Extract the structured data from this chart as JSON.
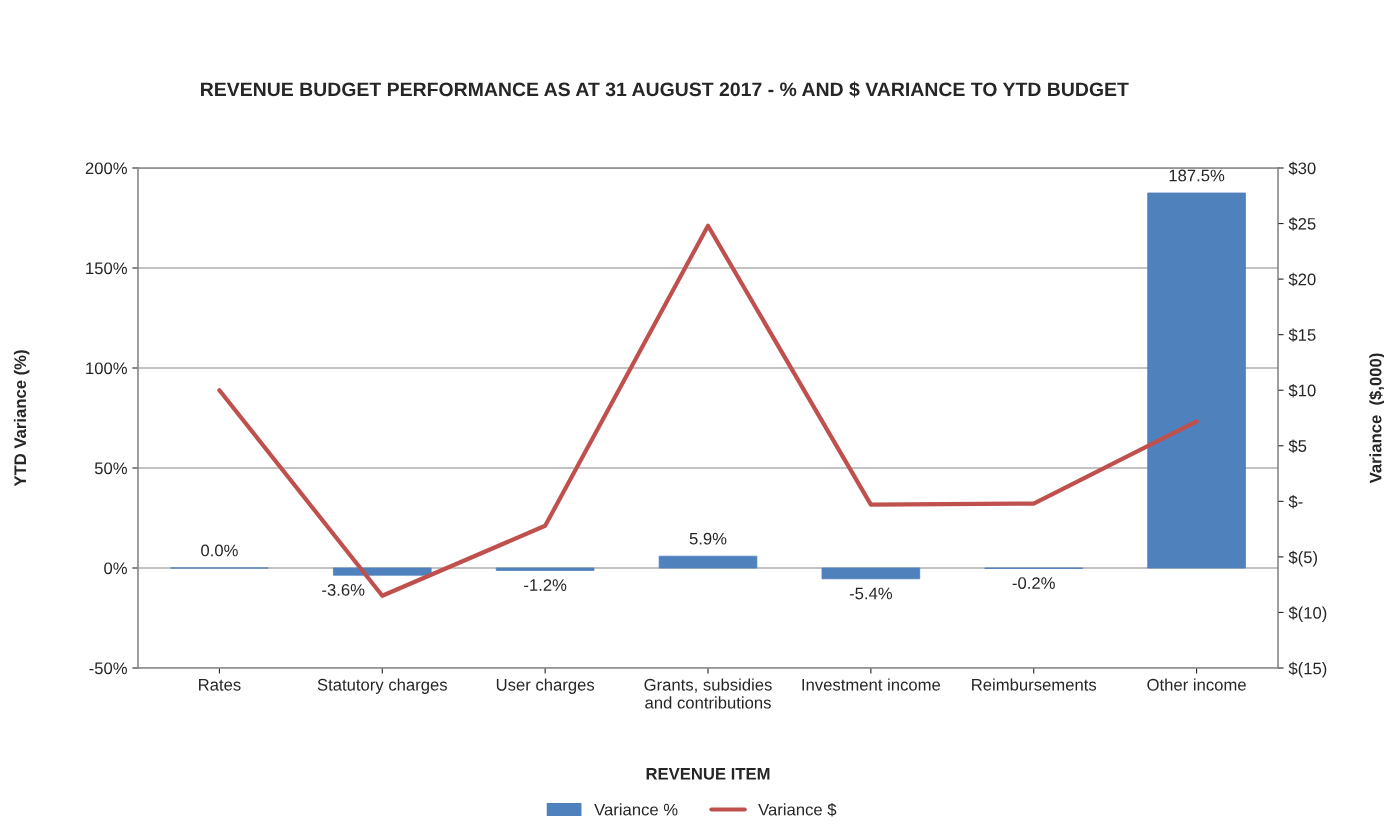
{
  "chart_data": {
    "type": "bar",
    "title": "REVENUE BUDGET PERFORMANCE AS AT 31 AUGUST 2017 - % AND $ VARIANCE TO YTD BUDGET",
    "xlabel": "REVENUE ITEM",
    "ylabel": "YTD Variance (%)",
    "y2label": "Variance  ($,000)",
    "categories": [
      "Rates",
      "Statutory charges",
      "User charges",
      "Grants, subsidies\nand contributions",
      "Investment income",
      "Reimbursements",
      "Other income"
    ],
    "series": [
      {
        "name": "Variance %",
        "type": "bar",
        "color": "#4f81bd",
        "values": [
          0.0,
          -3.6,
          -1.2,
          5.9,
          -5.4,
          -0.2,
          187.5
        ],
        "value_labels": [
          "0.0%",
          "-3.6%",
          "-1.2%",
          "5.9%",
          "-5.4%",
          "-0.2%",
          "187.5%"
        ]
      },
      {
        "name": "Variance $",
        "type": "line",
        "axis": "y2",
        "color": "#c0504d",
        "values": [
          10.0,
          -8.5,
          -2.2,
          24.8,
          -0.3,
          -0.2,
          7.2
        ]
      }
    ],
    "ylim": [
      -50,
      200
    ],
    "yticks": [
      {
        "value": -50,
        "label": "-50%"
      },
      {
        "value": 0,
        "label": "0%"
      },
      {
        "value": 50,
        "label": "50%"
      },
      {
        "value": 100,
        "label": "100%"
      },
      {
        "value": 150,
        "label": "150%"
      },
      {
        "value": 200,
        "label": "200%"
      }
    ],
    "y2lim": [
      -15,
      30
    ],
    "y2ticks": [
      {
        "value": -15,
        "label": "$(15)"
      },
      {
        "value": -10,
        "label": "$(10)"
      },
      {
        "value": -5,
        "label": "$(5)"
      },
      {
        "value": 0,
        "label": "$-"
      },
      {
        "value": 5,
        "label": "$5"
      },
      {
        "value": 10,
        "label": "$10"
      },
      {
        "value": 15,
        "label": "$15"
      },
      {
        "value": 20,
        "label": "$20"
      },
      {
        "value": 25,
        "label": "$25"
      },
      {
        "value": 30,
        "label": "$30"
      }
    ],
    "grid": "y",
    "legend": "bottom",
    "marker": "none",
    "line_style": "solid"
  }
}
